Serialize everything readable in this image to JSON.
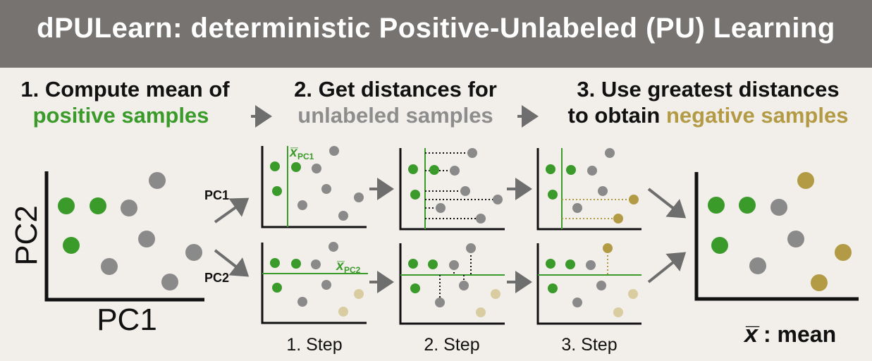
{
  "title": "dPULearn: deterministic Positive-Unlabeled (PU) Learning",
  "steps": [
    {
      "line1": "1. Compute mean of",
      "line2": "positive samples"
    },
    {
      "line1": "2. Get distances for",
      "line2": "unlabeled samples"
    },
    {
      "line1": "3. Use greatest distances",
      "line2a": "to obtain ",
      "line2b": "negative samples"
    }
  ],
  "axes": {
    "x": "PC1",
    "y": "PC2"
  },
  "branches": {
    "pc1": "PC1",
    "pc2": "PC2"
  },
  "mean_labels": {
    "pc1_symbol": "x̅",
    "pc1_sub": "PC1",
    "pc2_symbol": "x̅",
    "pc2_sub": "PC2"
  },
  "step_captions": [
    "1. Step",
    "2. Step",
    "3. Step"
  ],
  "legend": {
    "symbol": "x̅",
    "text": ": mean"
  },
  "colors": {
    "banner": "#767370",
    "background": "#f2efea",
    "positive": "#3a9a2a",
    "unlabeled": "#8a8a8a",
    "negative": "#b39a45",
    "faded_negative": "#d8cca0",
    "arrow": "#6e6e6e"
  }
}
